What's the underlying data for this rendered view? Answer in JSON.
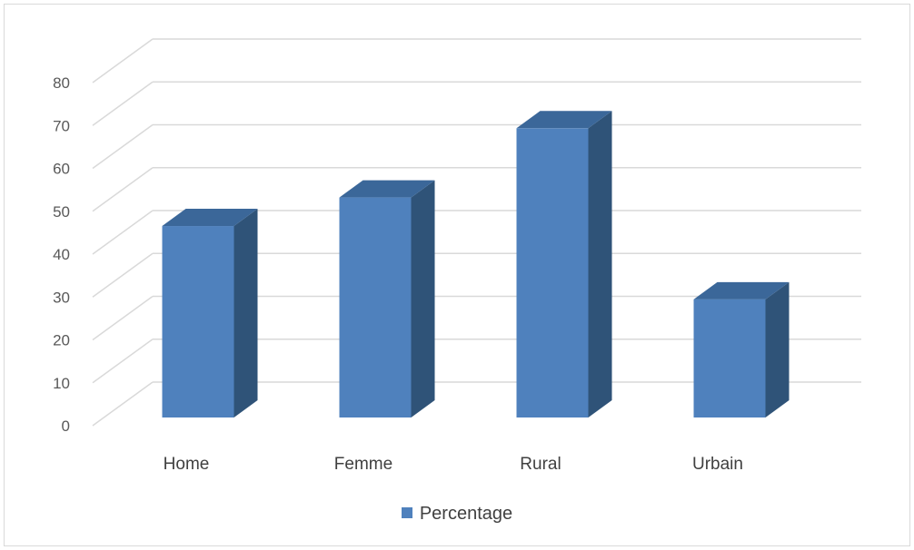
{
  "chart_data": {
    "type": "bar",
    "categories": [
      "Home",
      "Femme",
      "Rural",
      "Urbain"
    ],
    "series": [
      {
        "name": "Percentage",
        "values": [
          47,
          54,
          71,
          29
        ]
      }
    ],
    "ylim": [
      0,
      80
    ],
    "yticks": [
      0,
      10,
      20,
      30,
      40,
      50,
      60,
      70,
      80
    ],
    "three_d": true,
    "grid": true,
    "legend_position": "bottom",
    "colors": {
      "bar_front": "#4f81bd",
      "bar_side": "#2f5378",
      "bar_top": "#3b6799",
      "grid": "#d9d9d9"
    }
  }
}
